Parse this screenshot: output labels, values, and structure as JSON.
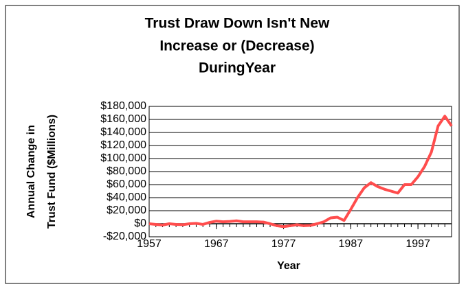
{
  "chart_data": {
    "type": "line",
    "title": [
      "Trust Draw Down Isn't New",
      "Increase or (Decrease)",
      "DuringYear"
    ],
    "x_label": "Year",
    "y_label": [
      "Annual Change in",
      "Trust Fund ($Millions)"
    ],
    "x": [
      1957,
      1958,
      1959,
      1960,
      1961,
      1962,
      1963,
      1964,
      1965,
      1966,
      1967,
      1968,
      1969,
      1970,
      1971,
      1972,
      1973,
      1974,
      1975,
      1976,
      1977,
      1978,
      1979,
      1980,
      1981,
      1982,
      1983,
      1984,
      1985,
      1986,
      1987,
      1988,
      1989,
      1990,
      1991,
      1992,
      1993,
      1994,
      1995,
      1996,
      1997,
      1998,
      1999,
      2000,
      2001,
      2002
    ],
    "series": [
      {
        "color": "#ff4d4d",
        "values": [
          0,
          -1000,
          -2000,
          0,
          -1000,
          -1500,
          0,
          500,
          -1000,
          2000,
          4000,
          3000,
          3500,
          4500,
          3000,
          3000,
          3000,
          2500,
          0,
          -3000,
          -4500,
          -3000,
          -1500,
          -3000,
          -2500,
          0,
          3000,
          9000,
          10000,
          5000,
          22000,
          40000,
          55000,
          63000,
          57000,
          53000,
          50000,
          47000,
          60000,
          60000,
          72000,
          88000,
          110000,
          150000,
          165000,
          150000
        ]
      }
    ],
    "xlim": [
      1957,
      2002
    ],
    "xticks": [
      1957,
      1967,
      1977,
      1987,
      1997
    ],
    "ylim": [
      -20000,
      180000
    ],
    "yticks": [
      {
        "value": -20000,
        "label": "-$20,000"
      },
      {
        "value": 0,
        "label": "$0"
      },
      {
        "value": 20000,
        "label": "$20,000"
      },
      {
        "value": 40000,
        "label": "$40,000"
      },
      {
        "value": 60000,
        "label": "$60,000"
      },
      {
        "value": 80000,
        "label": "$80,000"
      },
      {
        "value": 100000,
        "label": "$100,000"
      },
      {
        "value": 120000,
        "label": "$120,000"
      },
      {
        "value": 140000,
        "label": "$140,000"
      },
      {
        "value": 160000,
        "label": "$160,000"
      },
      {
        "value": 180000,
        "label": "$180,000"
      }
    ],
    "grid": true
  }
}
